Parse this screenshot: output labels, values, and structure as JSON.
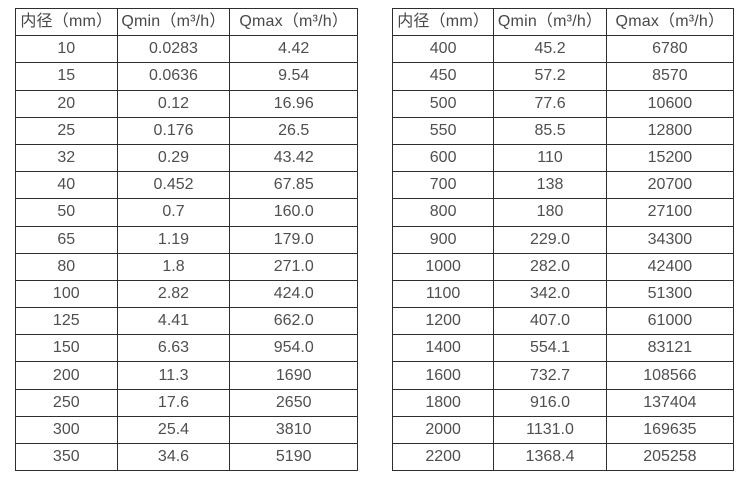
{
  "tables": [
    {
      "name": "flow-rate-table-small-diameters",
      "headers": [
        "内径（mm）",
        "Qmin（m³/h）",
        "Qmax（m³/h）"
      ],
      "rows": [
        [
          "10",
          "0.0283",
          "4.42"
        ],
        [
          "15",
          "0.0636",
          "9.54"
        ],
        [
          "20",
          "0.12",
          "16.96"
        ],
        [
          "25",
          "0.176",
          "26.5"
        ],
        [
          "32",
          "0.29",
          "43.42"
        ],
        [
          "40",
          "0.452",
          "67.85"
        ],
        [
          "50",
          "0.7",
          "160.0"
        ],
        [
          "65",
          "1.19",
          "179.0"
        ],
        [
          "80",
          "1.8",
          "271.0"
        ],
        [
          "100",
          "2.82",
          "424.0"
        ],
        [
          "125",
          "4.41",
          "662.0"
        ],
        [
          "150",
          "6.63",
          "954.0"
        ],
        [
          "200",
          "11.3",
          "1690"
        ],
        [
          "250",
          "17.6",
          "2650"
        ],
        [
          "300",
          "25.4",
          "3810"
        ],
        [
          "350",
          "34.6",
          "5190"
        ]
      ]
    },
    {
      "name": "flow-rate-table-large-diameters",
      "headers": [
        "内径（mm）",
        "Qmin（m³/h）",
        "Qmax（m³/h）"
      ],
      "rows": [
        [
          "400",
          "45.2",
          "6780"
        ],
        [
          "450",
          "57.2",
          "8570"
        ],
        [
          "500",
          "77.6",
          "10600"
        ],
        [
          "550",
          "85.5",
          "12800"
        ],
        [
          "600",
          "110",
          "15200"
        ],
        [
          "700",
          "138",
          "20700"
        ],
        [
          "800",
          "180",
          "27100"
        ],
        [
          "900",
          "229.0",
          "34300"
        ],
        [
          "1000",
          "282.0",
          "42400"
        ],
        [
          "1100",
          "342.0",
          "51300"
        ],
        [
          "1200",
          "407.0",
          "61000"
        ],
        [
          "1400",
          "554.1",
          "83121"
        ],
        [
          "1600",
          "732.7",
          "108566"
        ],
        [
          "1800",
          "916.0",
          "137404"
        ],
        [
          "2000",
          "1131.0",
          "169635"
        ],
        [
          "2200",
          "1368.4",
          "205258"
        ]
      ]
    },
    {
      "colors": {
        "border": "#2e2e2e",
        "text": "#4f4f52",
        "background": "#ffffff"
      }
    }
  ]
}
